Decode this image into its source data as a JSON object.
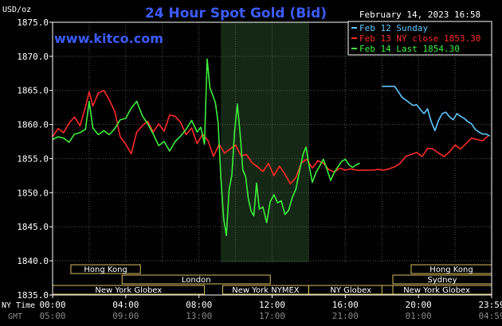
{
  "chart_data": {
    "type": "line",
    "title": "24 Hour Spot Gold (Bid)",
    "website": "www.kitco.com",
    "ylabel": "USD/oz",
    "timestamp": "February 14, 2023 16:58",
    "ylim": [
      1835,
      1875
    ],
    "yticks": [
      "1875.0",
      "1870.0",
      "1865.0",
      "1860.0",
      "1855.0",
      "1850.0",
      "1845.0",
      "1840.0",
      "1835.0"
    ],
    "grid": true,
    "legend_position": "top-right",
    "x_axis": {
      "ny_label": "NY Time",
      "gmt_label": "GMT",
      "ny_ticks": [
        "00:00",
        "04:00",
        "08:00",
        "12:00",
        "16:00",
        "20:00",
        "23:59"
      ],
      "gmt_ticks": [
        "05:00",
        "09:00",
        "13:00",
        "17:00",
        "21:00",
        "01:00",
        "04:59"
      ],
      "range_hours": [
        0,
        24
      ]
    },
    "highlight_band": {
      "from_hour": 9.2,
      "to_hour": 14.0
    },
    "sessions": [
      {
        "name": "Hong Kong",
        "start": 1.0,
        "end": 4.8,
        "row": 0
      },
      {
        "name": "London",
        "start": 3.8,
        "end": 11.9,
        "row": 1
      },
      {
        "name": "New York Globex",
        "start": 0.0,
        "end": 8.3,
        "row": 2
      },
      {
        "name": "New York NYMEX",
        "start": 9.3,
        "end": 14.0,
        "row": 2
      },
      {
        "name": "NY Globex",
        "start": 14.0,
        "end": 18.6,
        "row": 2
      },
      {
        "name": "Hong Kong",
        "start": 19.6,
        "end": 24.0,
        "row": 0
      },
      {
        "name": "Sydney",
        "start": 18.6,
        "end": 24.0,
        "row": 1
      },
      {
        "name": "New York Globex",
        "start": 18.0,
        "end": 24.0,
        "row": 2
      }
    ],
    "series": [
      {
        "name": "Feb 12 Sunday",
        "color": "#5fc8ff",
        "x": [
          18.0,
          18.4,
          18.7,
          18.9,
          19.1,
          19.3,
          19.5,
          19.7,
          19.9,
          20.1,
          20.3,
          20.5,
          20.7,
          20.9,
          21.1,
          21.3,
          21.5,
          21.7,
          21.9,
          22.1,
          22.3,
          22.5,
          22.7,
          22.9,
          23.1,
          23.3,
          23.5,
          23.7,
          23.9
        ],
        "values": [
          1865.6,
          1865.6,
          1865.6,
          1864.8,
          1864.0,
          1863.6,
          1863.2,
          1862.8,
          1862.9,
          1862.2,
          1861.6,
          1862.3,
          1860.4,
          1859.1,
          1860.6,
          1861.6,
          1861.8,
          1861.1,
          1860.7,
          1861.6,
          1861.2,
          1860.9,
          1860.4,
          1860.1,
          1859.3,
          1858.9,
          1858.6,
          1858.6,
          1858.3
        ]
      },
      {
        "name": "Feb 13 NY close 1853.30",
        "color": "#ff2a2a",
        "x": [
          0.0,
          0.3,
          0.6,
          0.9,
          1.2,
          1.5,
          1.8,
          2.0,
          2.2,
          2.5,
          2.8,
          3.1,
          3.4,
          3.7,
          4.0,
          4.3,
          4.6,
          4.9,
          5.2,
          5.5,
          5.8,
          6.1,
          6.4,
          6.7,
          7.0,
          7.3,
          7.6,
          7.9,
          8.2,
          8.5,
          8.8,
          9.1,
          9.4,
          9.7,
          10.0,
          10.3,
          10.6,
          10.9,
          11.2,
          11.5,
          11.8,
          12.1,
          12.4,
          12.7,
          13.0,
          13.3,
          13.6,
          13.9,
          14.2,
          14.5,
          14.8,
          15.1,
          15.4,
          15.7,
          16.0,
          16.3,
          16.6,
          16.9,
          17.2,
          17.5,
          17.8,
          18.1,
          18.4,
          18.7,
          19.0,
          19.3,
          19.6,
          19.9,
          20.2,
          20.5,
          20.8,
          21.1,
          21.4,
          21.7,
          22.0,
          22.3,
          22.6,
          22.9,
          23.2,
          23.5,
          23.8
        ],
        "values": [
          1858.2,
          1859.4,
          1858.8,
          1860.2,
          1861.1,
          1859.8,
          1862.6,
          1864.8,
          1862.7,
          1864.6,
          1865.0,
          1863.6,
          1861.9,
          1858.2,
          1857.1,
          1855.7,
          1858.9,
          1859.8,
          1860.5,
          1858.9,
          1860.1,
          1859.0,
          1861.4,
          1861.2,
          1860.3,
          1858.5,
          1859.5,
          1857.2,
          1858.6,
          1857.6,
          1855.3,
          1857.1,
          1855.8,
          1856.4,
          1857.0,
          1855.4,
          1855.6,
          1854.4,
          1853.8,
          1853.1,
          1854.3,
          1852.5,
          1853.9,
          1852.7,
          1851.3,
          1852.2,
          1854.4,
          1854.9,
          1853.6,
          1854.7,
          1854.3,
          1853.4,
          1853.0,
          1853.6,
          1853.3,
          1853.5,
          1853.3,
          1853.3,
          1853.3,
          1853.3,
          1853.4,
          1853.3,
          1853.5,
          1853.8,
          1854.3,
          1855.3,
          1855.6,
          1855.9,
          1855.3,
          1856.5,
          1856.4,
          1855.8,
          1855.3,
          1856.0,
          1857.0,
          1856.4,
          1857.2,
          1858.0,
          1857.8,
          1857.6,
          1858.3
        ]
      },
      {
        "name": "Feb 14 Last 1854.30",
        "color": "#3df03d",
        "x": [
          0.0,
          0.3,
          0.6,
          0.9,
          1.2,
          1.5,
          1.8,
          2.0,
          2.2,
          2.5,
          2.8,
          3.1,
          3.4,
          3.7,
          4.0,
          4.3,
          4.6,
          4.9,
          5.2,
          5.5,
          5.8,
          6.1,
          6.4,
          6.7,
          7.0,
          7.3,
          7.6,
          7.9,
          8.1,
          8.3,
          8.45,
          8.6,
          8.75,
          8.9,
          9.05,
          9.2,
          9.35,
          9.5,
          9.65,
          9.8,
          9.95,
          10.1,
          10.25,
          10.4,
          10.55,
          10.7,
          10.85,
          11.0,
          11.15,
          11.3,
          11.5,
          11.7,
          11.9,
          12.1,
          12.3,
          12.5,
          12.7,
          12.9,
          13.1,
          13.3,
          13.5,
          13.7,
          13.85,
          14.0,
          14.2,
          14.4,
          14.6,
          14.8,
          15.0,
          15.2,
          15.4,
          15.6,
          15.8,
          16.0,
          16.2,
          16.4,
          16.6,
          16.8
        ],
        "values": [
          1857.8,
          1858.2,
          1858.0,
          1857.4,
          1858.6,
          1858.8,
          1859.3,
          1863.4,
          1859.5,
          1858.5,
          1859.1,
          1858.5,
          1859.4,
          1860.7,
          1860.9,
          1862.4,
          1863.4,
          1861.3,
          1860.1,
          1858.6,
          1856.9,
          1857.5,
          1856.1,
          1857.5,
          1858.3,
          1859.3,
          1860.6,
          1858.9,
          1859.6,
          1857.1,
          1869.6,
          1865.4,
          1864.3,
          1863.2,
          1860.2,
          1852.1,
          1846.2,
          1843.7,
          1850.4,
          1852.6,
          1859.0,
          1863.0,
          1858.7,
          1853.3,
          1852.4,
          1849.1,
          1847.3,
          1846.6,
          1851.4,
          1847.6,
          1847.9,
          1845.6,
          1848.7,
          1849.7,
          1848.5,
          1848.8,
          1846.8,
          1847.4,
          1849.3,
          1850.5,
          1853.2,
          1855.7,
          1856.7,
          1854.3,
          1851.5,
          1853.0,
          1853.9,
          1854.9,
          1853.4,
          1851.8,
          1853.0,
          1853.8,
          1854.6,
          1854.9,
          1854.1,
          1853.7,
          1854.1,
          1854.3
        ]
      }
    ]
  }
}
